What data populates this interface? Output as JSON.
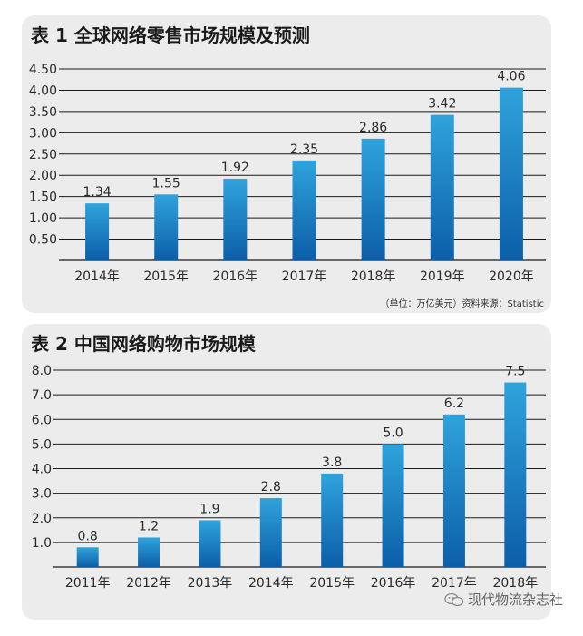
{
  "charts": [
    {
      "title": "表 1  全球网络零售市场规模及预测",
      "source": "（单位：万亿美元）资料来源：Statistic"
    },
    {
      "title": "表 2  中国网络购物市场规模"
    }
  ],
  "watermark": {
    "text": "现代物流杂志社",
    "icon": "wechat-icon"
  },
  "colors": {
    "bar_top": "#2fa3dc",
    "bar_bottom": "#0c5ea8",
    "panel_bg": "#ececec",
    "grid": "#1a1a1a"
  },
  "chart_data": [
    {
      "type": "bar",
      "title": "表 1  全球网络零售市场规模及预测",
      "categories": [
        "2014年",
        "2015年",
        "2016年",
        "2017年",
        "2018年",
        "2019年",
        "2020年"
      ],
      "values": [
        1.34,
        1.55,
        1.92,
        2.35,
        2.86,
        3.42,
        4.06
      ],
      "value_labels": [
        "1.34",
        "1.55",
        "1.92",
        "2.35",
        "2.86",
        "3.42",
        "4.06"
      ],
      "y_ticks": [
        "0.50",
        "1.00",
        "1.50",
        "2.00",
        "2.50",
        "3.00",
        "3.50",
        "4.00",
        "4.50"
      ],
      "ylim": [
        0,
        4.5
      ],
      "grid": true,
      "xlabel": "",
      "ylabel": ""
    },
    {
      "type": "bar",
      "title": "表 2  中国网络购物市场规模",
      "categories": [
        "2011年",
        "2012年",
        "2013年",
        "2014年",
        "2015年",
        "2016年",
        "2017年",
        "2018年"
      ],
      "values": [
        0.8,
        1.2,
        1.9,
        2.8,
        3.8,
        5.0,
        6.2,
        7.5
      ],
      "value_labels": [
        "0.8",
        "1.2",
        "1.9",
        "2.8",
        "3.8",
        "5.0",
        "6.2",
        "7.5"
      ],
      "y_ticks": [
        "1.0",
        "2.0",
        "3.0",
        "4.0",
        "5.0",
        "6.0",
        "7.0",
        "8.0"
      ],
      "ylim": [
        0,
        8
      ],
      "grid": true,
      "xlabel": "",
      "ylabel": ""
    }
  ]
}
